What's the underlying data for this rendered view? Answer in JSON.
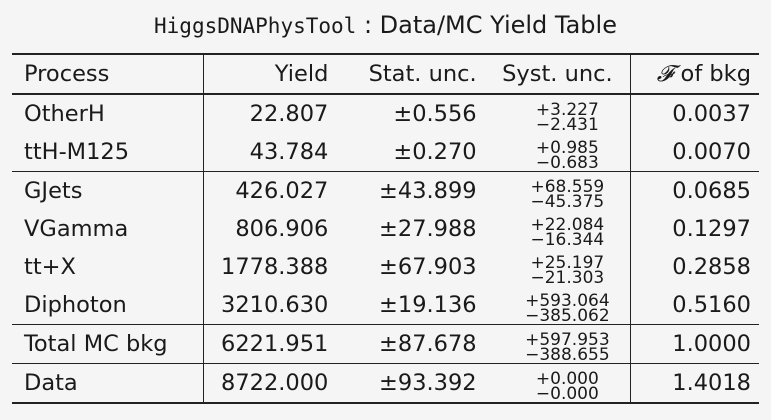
{
  "caption": {
    "tool": "HiggsDNAPhysTool",
    "sep": " : ",
    "title": "Data/MC Yield Table"
  },
  "headers": {
    "process": "Process",
    "yield": "Yield",
    "stat": "Stat. unc.",
    "syst": "Syst. unc.",
    "frac_symbol": "𝓕",
    "frac_rest": " of bkg"
  },
  "rows": [
    {
      "process": "OtherH",
      "yield": "22.807",
      "stat": "±0.556",
      "syst_up": "+3.227",
      "syst_down": "−2.431",
      "frac": "0.0037"
    },
    {
      "process": "ttH-M125",
      "yield": "43.784",
      "stat": "±0.270",
      "syst_up": "+0.985",
      "syst_down": "−0.683",
      "frac": "0.0070"
    },
    {
      "process": "GJets",
      "yield": "426.027",
      "stat": "±43.899",
      "syst_up": "+68.559",
      "syst_down": "−45.375",
      "frac": "0.0685"
    },
    {
      "process": "VGamma",
      "yield": "806.906",
      "stat": "±27.988",
      "syst_up": "+22.084",
      "syst_down": "−16.344",
      "frac": "0.1297"
    },
    {
      "process": "tt+X",
      "yield": "1778.388",
      "stat": "±67.903",
      "syst_up": "+25.197",
      "syst_down": "−21.303",
      "frac": "0.2858"
    },
    {
      "process": "Diphoton",
      "yield": "3210.630",
      "stat": "±19.136",
      "syst_up": "+593.064",
      "syst_down": "−385.062",
      "frac": "0.5160"
    },
    {
      "process": "Total MC bkg",
      "yield": "6221.951",
      "stat": "±87.678",
      "syst_up": "+597.953",
      "syst_down": "−388.655",
      "frac": "1.0000"
    },
    {
      "process": "Data",
      "yield": "8722.000",
      "stat": "±93.392",
      "syst_up": "+0.000",
      "syst_down": "−0.000",
      "frac": "1.4018"
    }
  ]
}
